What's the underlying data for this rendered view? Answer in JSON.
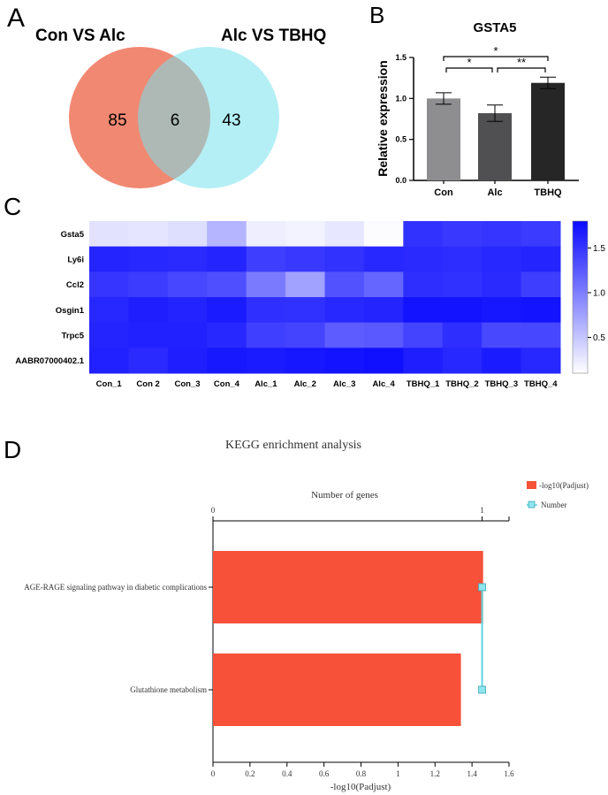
{
  "panels": {
    "a": "A",
    "b": "B",
    "c": "C",
    "d": "D"
  },
  "venn": {
    "left_title": "Con  VS  Alc",
    "right_title": "Alc  VS  TBHQ",
    "left_only": "85",
    "overlap": "6",
    "right_only": "43",
    "left_color": "#f0826a",
    "right_color": "#76e2ec"
  },
  "chart_data": [
    {
      "type": "bar",
      "title": "GSTA5",
      "ylabel": "Relative expression",
      "xlabel": "",
      "categories": [
        "Con",
        "Alc",
        "TBHQ"
      ],
      "values": [
        1.0,
        0.82,
        1.19
      ],
      "errors": [
        0.07,
        0.1,
        0.07
      ],
      "colors": [
        "#8e8e90",
        "#505052",
        "#262626"
      ],
      "ylim": [
        0,
        1.5
      ],
      "yticks": [
        "0.0",
        "0.5",
        "1.0",
        "1.5"
      ],
      "significance": [
        {
          "from": "Con",
          "to": "Alc",
          "label": "*"
        },
        {
          "from": "Alc",
          "to": "TBHQ",
          "label": "**"
        },
        {
          "from": "Con",
          "to": "TBHQ",
          "label": "*"
        }
      ]
    },
    {
      "type": "heatmap",
      "rows": [
        "Gsta5",
        "Ly6i",
        "Ccl2",
        "Osgin1",
        "Trpc5",
        "AABR07000402.1"
      ],
      "columns": [
        "Con_1",
        "Con 2",
        "Con_3",
        "Con_4",
        "Alc_1",
        "Alc_2",
        "Alc_3",
        "Alc_4",
        "TBHQ_1",
        "TBHQ_2",
        "TBHQ_3",
        "TBHQ_4"
      ],
      "values": [
        [
          0.3,
          0.28,
          0.33,
          0.62,
          0.22,
          0.18,
          0.27,
          0.12,
          1.52,
          1.48,
          1.5,
          1.46
        ],
        [
          1.62,
          1.6,
          1.58,
          1.62,
          1.44,
          1.48,
          1.52,
          1.6,
          1.58,
          1.56,
          1.6,
          1.62
        ],
        [
          1.5,
          1.45,
          1.38,
          1.32,
          1.02,
          0.75,
          1.3,
          1.17,
          1.55,
          1.53,
          1.58,
          1.44
        ],
        [
          1.6,
          1.66,
          1.63,
          1.68,
          1.54,
          1.53,
          1.6,
          1.62,
          1.74,
          1.74,
          1.72,
          1.74
        ],
        [
          1.62,
          1.64,
          1.64,
          1.6,
          1.43,
          1.4,
          1.23,
          1.25,
          1.4,
          1.55,
          1.37,
          1.38
        ],
        [
          1.64,
          1.58,
          1.66,
          1.7,
          1.68,
          1.72,
          1.74,
          1.76,
          1.66,
          1.6,
          1.68,
          1.6
        ]
      ],
      "color_range": [
        0.1,
        1.8
      ],
      "colorbar_ticks": [
        "0.5",
        "1.0",
        "1.5"
      ],
      "colors": {
        "low": "#ffffff",
        "high": "#0a0aff"
      }
    },
    {
      "type": "bar",
      "orientation": "horizontal",
      "title": "KEGG enrichment analysis",
      "top_axis_label": "Number of genes",
      "xlabel": "-log10(Padjust)",
      "categories": [
        "AGE-RAGE signaling pathway in diabetic complications",
        "Glutathione metabolism"
      ],
      "values": [
        1.46,
        1.34
      ],
      "number": [
        1,
        1
      ],
      "xlim": [
        0,
        1.6
      ],
      "xticks": [
        "0",
        "0.2",
        "0.4",
        "0.6",
        "0.8",
        "1",
        "1.2",
        "1.4",
        "1.6"
      ],
      "top_xlim": [
        0,
        1.1
      ],
      "top_ticks": [
        "0",
        "1"
      ],
      "legend": [
        "-log10(Padjust)",
        "Number"
      ],
      "legend_position": "top-right",
      "bar_color": "#f7513a",
      "line_color": "#5fd3df"
    }
  ]
}
